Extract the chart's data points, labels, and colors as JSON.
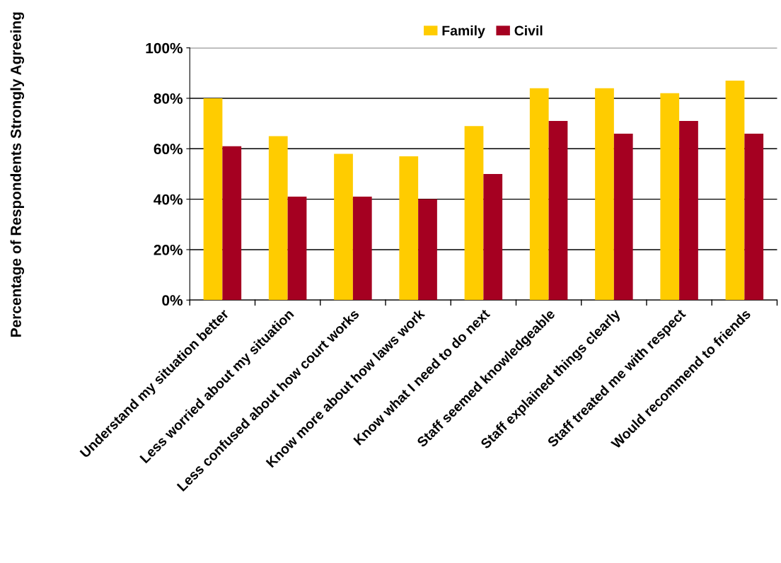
{
  "chart_data": {
    "type": "bar",
    "ylabel": "Percentage of Respondents Strongly Agreeing",
    "categories": [
      "Understand my situation better",
      "Less worried about my situation",
      "Less confused about how court works",
      "Know more about how laws work",
      "Know what I need to do next",
      "Staff seemed knowledgeable",
      "Staff explained things clearly",
      "Staff treated me with respect",
      "Would recommend to friends"
    ],
    "series": [
      {
        "name": "Family",
        "color": "#ffcc00",
        "values": [
          80,
          65,
          58,
          57,
          69,
          84,
          84,
          82,
          87
        ]
      },
      {
        "name": "Civil",
        "color": "#a50021",
        "values": [
          61,
          41,
          41,
          40,
          50,
          71,
          66,
          71,
          66
        ]
      }
    ],
    "ylim": [
      0,
      100
    ],
    "yticks": [
      {
        "value": 0,
        "label": "0%"
      },
      {
        "value": 20,
        "label": "20%"
      },
      {
        "value": 40,
        "label": "40%"
      },
      {
        "value": 60,
        "label": "60%"
      },
      {
        "value": 80,
        "label": "80%"
      },
      {
        "value": 100,
        "label": "100%"
      }
    ],
    "grid": "y",
    "legend": "top"
  }
}
